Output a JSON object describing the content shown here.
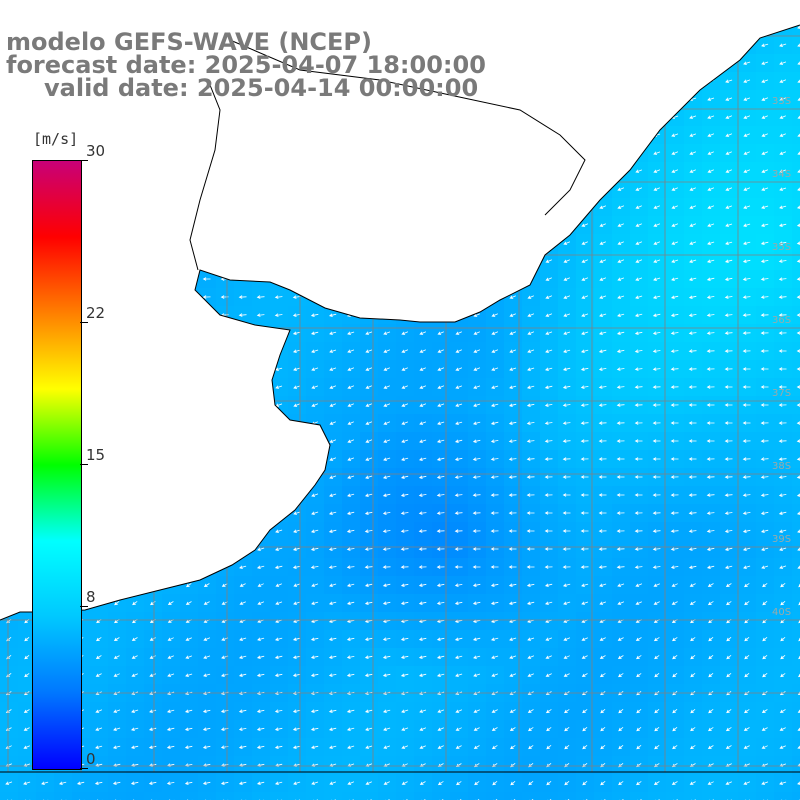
{
  "title": {
    "line1": "modelo GEFS-WAVE (NCEP)",
    "line2": "forecast date: 2025-04-07 18:00:00",
    "line3": "valid date: 2025-04-14 00:00:00"
  },
  "colorbar": {
    "unit": "[m/s]",
    "min": 0,
    "max": 30,
    "labels": [
      "30",
      "22",
      "15",
      "8",
      "0"
    ],
    "label_values": [
      30,
      22,
      15,
      8,
      0
    ],
    "colors": [
      "#0000ff",
      "#0077ff",
      "#00c8ff",
      "#00ffff",
      "#00ff00",
      "#ffff00",
      "#ff7f00",
      "#ff0000",
      "#c80078"
    ]
  },
  "map": {
    "field": "wind speed and direction",
    "land_color": "#ffffff",
    "coastline_color": "#000000",
    "grid_color": "#808080",
    "lat_labels_right": [
      "33S",
      "34S",
      "35S",
      "36S",
      "37S",
      "38S",
      "39S",
      "40S"
    ],
    "typical_speed_ms": [
      4,
      9
    ],
    "arrow_color": "#ffffff"
  }
}
